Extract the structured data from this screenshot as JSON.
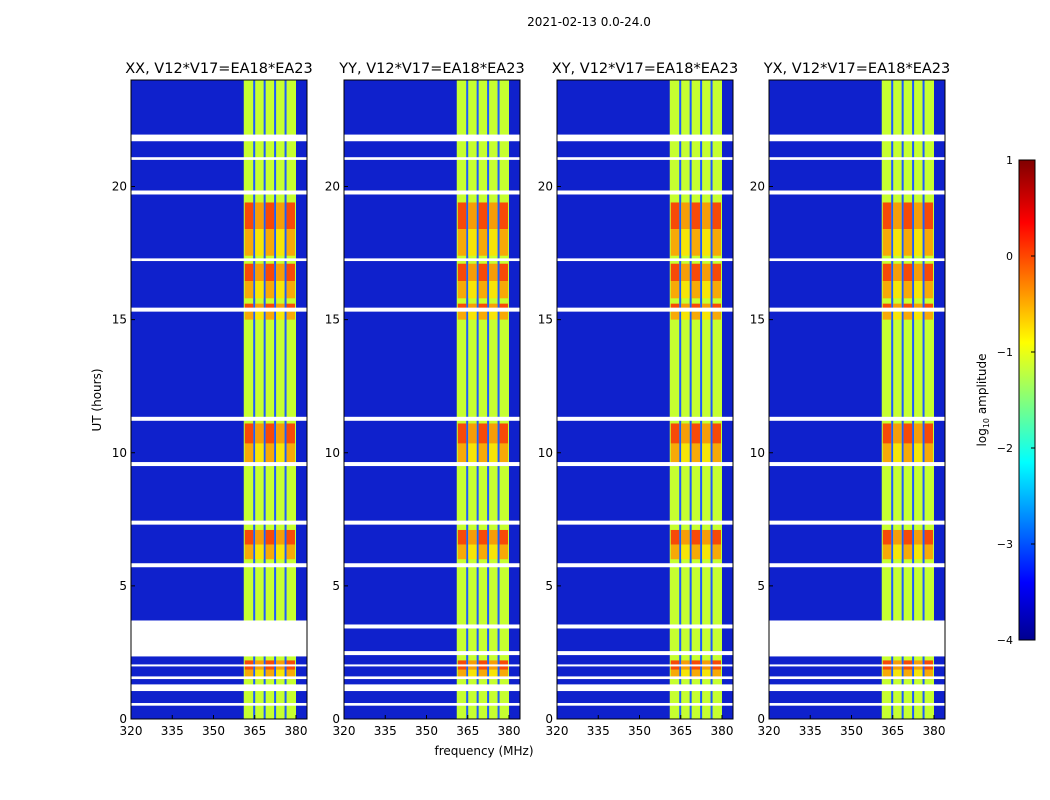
{
  "figure": {
    "suptitle": "2021-02-13 0.0-24.0",
    "shared_xlabel": "frequency (MHz)",
    "shared_ylabel": "UT (hours)"
  },
  "chart_data": [
    {
      "type": "heatmap",
      "title": "XX, V12*V17=EA18*EA23",
      "xlabel": "frequency (MHz)",
      "ylabel": "UT (hours)",
      "xlim": [
        320,
        384
      ],
      "ylim": [
        0,
        24
      ],
      "xticks": [
        320,
        335,
        350,
        365,
        380
      ],
      "yticks": [
        0,
        5,
        10,
        15,
        20
      ],
      "rfi_band_mhz": [
        361,
        380
      ],
      "flagged_hours": [
        [
          0.5,
          0.6
        ],
        [
          1.05,
          1.3
        ],
        [
          1.5,
          1.6
        ],
        [
          2.0,
          2.05
        ],
        [
          2.35,
          3.7
        ],
        [
          5.7,
          5.85
        ],
        [
          7.3,
          7.45
        ],
        [
          9.5,
          9.65
        ],
        [
          11.2,
          11.35
        ],
        [
          15.3,
          15.45
        ],
        [
          17.2,
          17.3
        ],
        [
          19.7,
          19.85
        ],
        [
          21.0,
          21.1
        ],
        [
          21.7,
          21.95
        ]
      ],
      "strong_rfi_hours": [
        [
          1.5,
          2.2
        ],
        [
          6.0,
          7.1
        ],
        [
          9.6,
          11.1
        ],
        [
          15.0,
          15.6
        ],
        [
          15.8,
          17.1
        ],
        [
          17.4,
          19.4
        ]
      ]
    },
    {
      "type": "heatmap",
      "title": "YY, V12*V17=EA18*EA23",
      "xlabel": "frequency (MHz)",
      "ylabel": "UT (hours)",
      "xlim": [
        320,
        384
      ],
      "ylim": [
        0,
        24
      ],
      "xticks": [
        320,
        335,
        350,
        365,
        380
      ],
      "yticks": [
        0,
        5,
        10,
        15,
        20
      ],
      "rfi_band_mhz": [
        361,
        380
      ],
      "flagged_hours": [
        [
          0.5,
          0.6
        ],
        [
          1.05,
          1.3
        ],
        [
          1.5,
          1.6
        ],
        [
          2.0,
          2.05
        ],
        [
          2.4,
          2.55
        ],
        [
          3.4,
          3.55
        ],
        [
          5.7,
          5.85
        ],
        [
          7.3,
          7.45
        ],
        [
          9.5,
          9.65
        ],
        [
          11.2,
          11.35
        ],
        [
          15.3,
          15.45
        ],
        [
          17.2,
          17.3
        ],
        [
          19.7,
          19.85
        ],
        [
          21.0,
          21.1
        ],
        [
          21.7,
          21.95
        ]
      ],
      "strong_rfi_hours": [
        [
          1.5,
          2.2
        ],
        [
          6.0,
          7.1
        ],
        [
          9.6,
          11.1
        ],
        [
          15.0,
          15.6
        ],
        [
          15.8,
          17.1
        ],
        [
          17.4,
          19.4
        ]
      ]
    },
    {
      "type": "heatmap",
      "title": "XY, V12*V17=EA18*EA23",
      "xlabel": "frequency (MHz)",
      "ylabel": "UT (hours)",
      "xlim": [
        320,
        384
      ],
      "ylim": [
        0,
        24
      ],
      "xticks": [
        320,
        335,
        350,
        365,
        380
      ],
      "yticks": [
        0,
        5,
        10,
        15,
        20
      ],
      "rfi_band_mhz": [
        361,
        380
      ],
      "flagged_hours": [
        [
          0.5,
          0.6
        ],
        [
          1.05,
          1.3
        ],
        [
          1.5,
          1.6
        ],
        [
          2.0,
          2.05
        ],
        [
          2.4,
          2.55
        ],
        [
          3.4,
          3.55
        ],
        [
          5.7,
          5.85
        ],
        [
          7.3,
          7.45
        ],
        [
          9.5,
          9.65
        ],
        [
          11.2,
          11.35
        ],
        [
          15.3,
          15.45
        ],
        [
          17.2,
          17.3
        ],
        [
          19.7,
          19.85
        ],
        [
          21.0,
          21.1
        ],
        [
          21.7,
          21.95
        ]
      ],
      "strong_rfi_hours": [
        [
          1.5,
          2.2
        ],
        [
          6.0,
          7.1
        ],
        [
          9.6,
          11.1
        ],
        [
          15.0,
          15.6
        ],
        [
          15.8,
          17.1
        ],
        [
          17.4,
          19.4
        ]
      ]
    },
    {
      "type": "heatmap",
      "title": "YX, V12*V17=EA18*EA23",
      "xlabel": "frequency (MHz)",
      "ylabel": "UT (hours)",
      "xlim": [
        320,
        384
      ],
      "ylim": [
        0,
        24
      ],
      "xticks": [
        320,
        335,
        350,
        365,
        380
      ],
      "yticks": [
        0,
        5,
        10,
        15,
        20
      ],
      "rfi_band_mhz": [
        361,
        380
      ],
      "flagged_hours": [
        [
          0.5,
          0.6
        ],
        [
          1.05,
          1.3
        ],
        [
          1.5,
          1.6
        ],
        [
          2.0,
          2.05
        ],
        [
          2.35,
          3.7
        ],
        [
          5.7,
          5.85
        ],
        [
          7.3,
          7.45
        ],
        [
          9.5,
          9.65
        ],
        [
          11.2,
          11.35
        ],
        [
          15.3,
          15.45
        ],
        [
          17.2,
          17.3
        ],
        [
          19.7,
          19.85
        ],
        [
          21.0,
          21.1
        ],
        [
          21.7,
          21.95
        ]
      ],
      "strong_rfi_hours": [
        [
          1.5,
          2.2
        ],
        [
          6.0,
          7.1
        ],
        [
          9.6,
          11.1
        ],
        [
          15.0,
          15.6
        ],
        [
          15.8,
          17.1
        ],
        [
          17.4,
          19.4
        ]
      ]
    }
  ],
  "colorbar": {
    "label": "log10 amplitude",
    "label_main": "log",
    "label_sub": "10",
    "label_rest": " amplitude",
    "min": -4,
    "max": 1,
    "ticks": [
      {
        "value": 1,
        "label": "1"
      },
      {
        "value": 0,
        "label": "0"
      },
      {
        "value": -1,
        "label": "−1"
      },
      {
        "value": -2,
        "label": "−2"
      },
      {
        "value": -3,
        "label": "−3"
      },
      {
        "value": -4,
        "label": "−4"
      }
    ]
  },
  "colors": {
    "background": "#00008f",
    "low": "#1c3cff",
    "band_base": "#c6ff30",
    "flag": "#ffffff"
  }
}
